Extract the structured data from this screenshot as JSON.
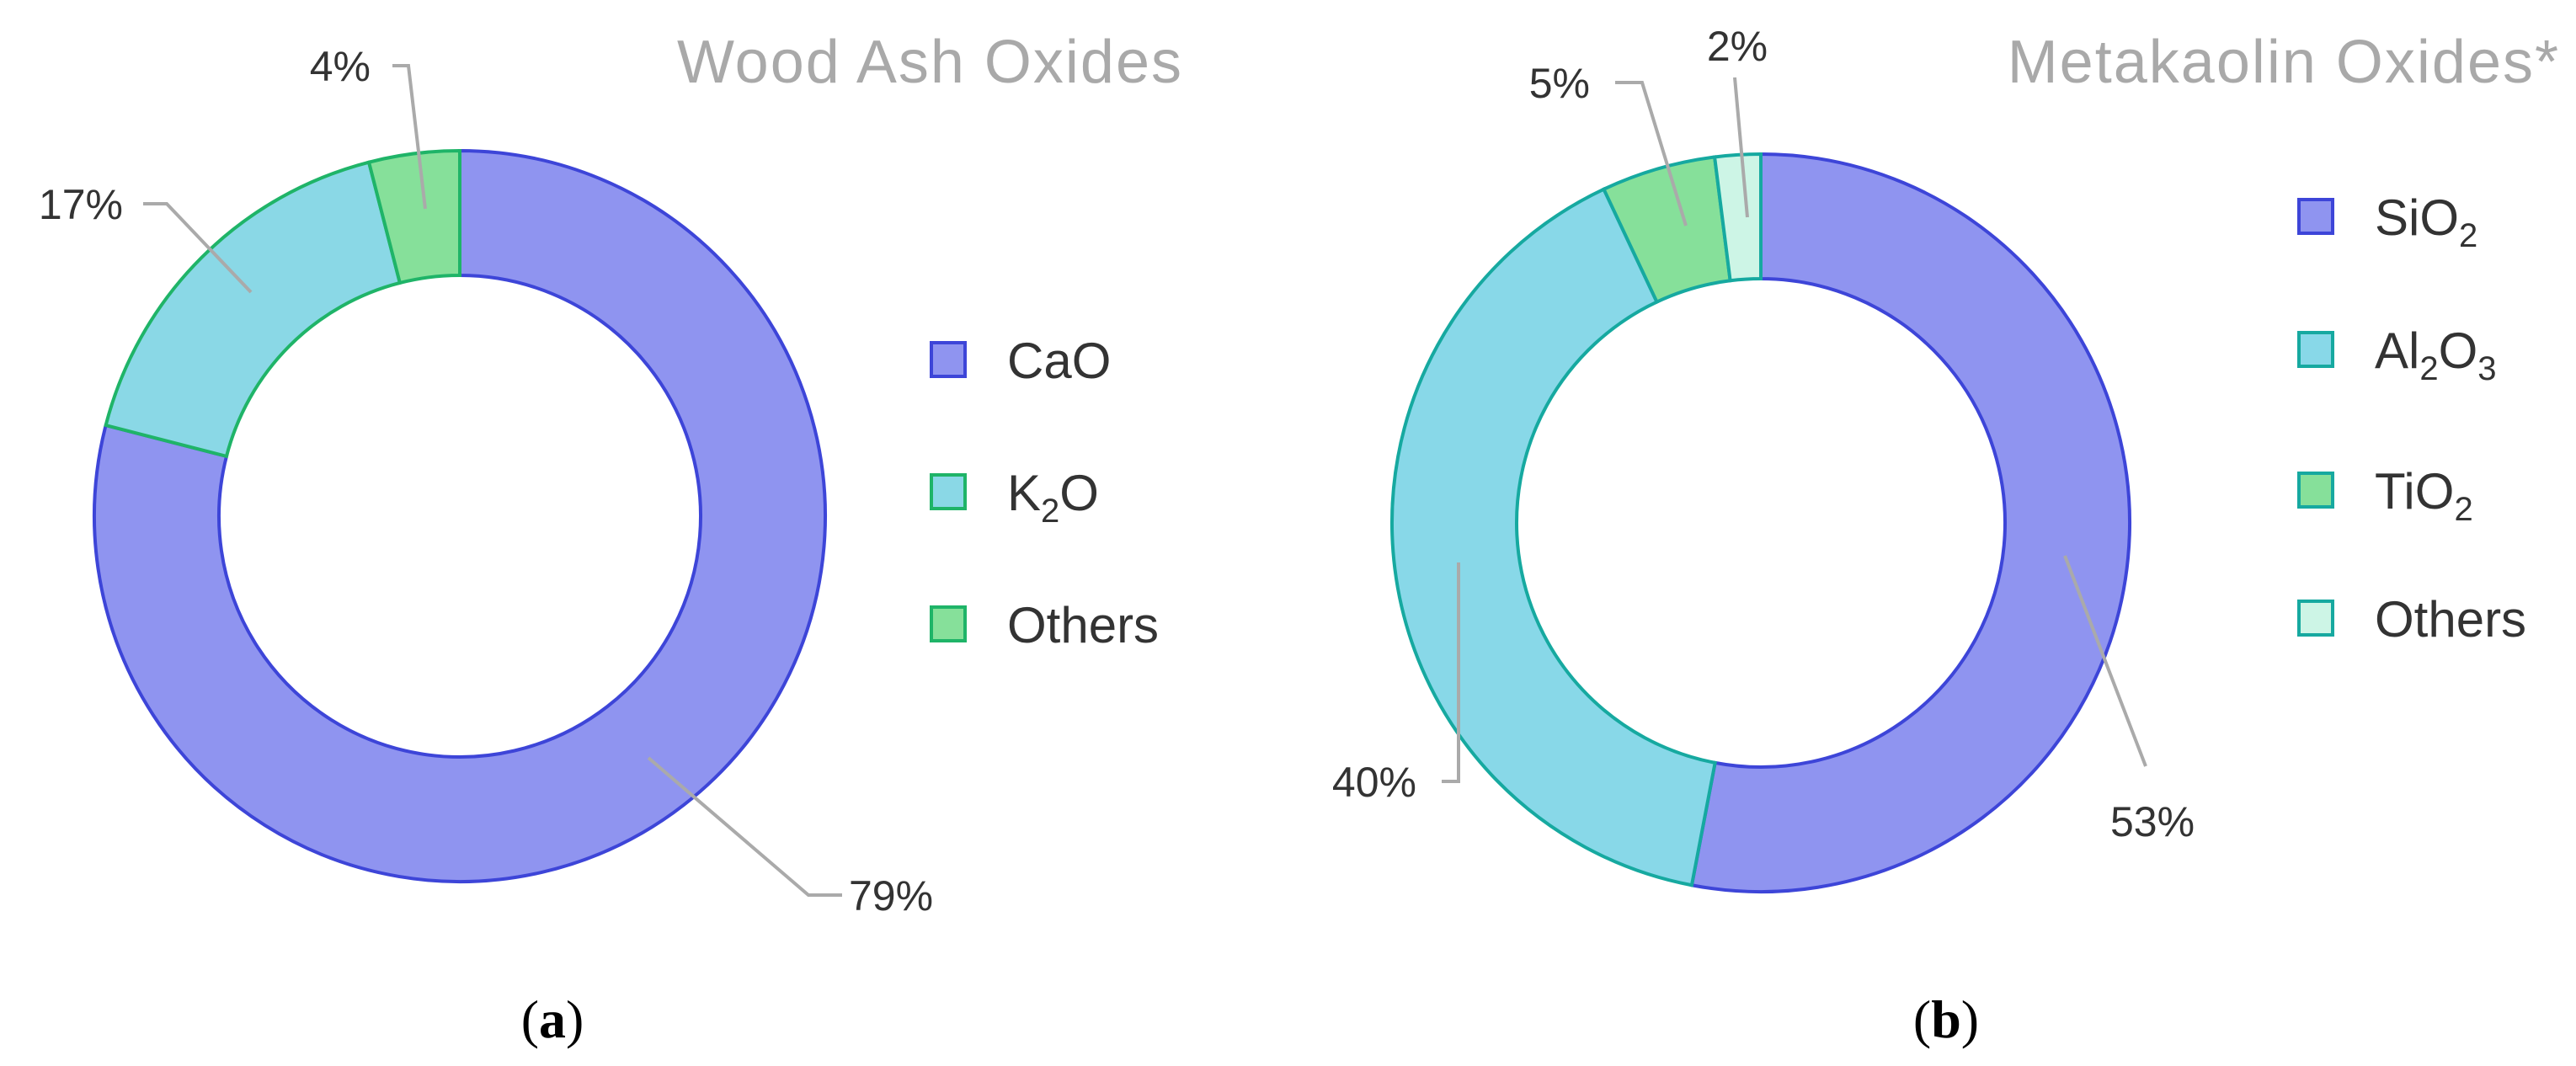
{
  "chart_data": [
    {
      "type": "pie",
      "title": "Wood Ash Oxides",
      "caption_letter": "a",
      "categories": [
        "CaO",
        "K2O",
        "Others"
      ],
      "values": [
        79,
        17,
        4
      ],
      "data_labels": [
        "79%",
        "17%",
        "4%"
      ],
      "legend": [
        {
          "main": "CaO",
          "sub": "",
          "tail": ""
        },
        {
          "main": "K",
          "sub": "2",
          "tail": "O"
        },
        {
          "main": "Others",
          "sub": "",
          "tail": ""
        }
      ],
      "legend_position": "right",
      "colors": {
        "fill": [
          "#8f94f0",
          "#8ad8e6",
          "#86e09a"
        ],
        "stroke": [
          "#3d45d8",
          "#1fb468",
          "#1fb468"
        ]
      }
    },
    {
      "type": "pie",
      "title": "Metakaolin Oxides*",
      "caption_letter": "b",
      "categories": [
        "SiO2",
        "Al2O3",
        "TiO2",
        "Others"
      ],
      "values": [
        53,
        40,
        5,
        2
      ],
      "data_labels": [
        "53%",
        "40%",
        "5%",
        "2%"
      ],
      "legend": [
        {
          "main": "SiO",
          "sub": "2",
          "tail": "",
          "sub2": ""
        },
        {
          "main": "Al",
          "sub": "2",
          "tail": "O",
          "sub2": "3"
        },
        {
          "main": "TiO",
          "sub": "2",
          "tail": "",
          "sub2": ""
        },
        {
          "main": "Others",
          "sub": "",
          "tail": "",
          "sub2": ""
        }
      ],
      "legend_position": "right",
      "colors": {
        "fill": [
          "#8f94f0",
          "#88d8e8",
          "#86e09a",
          "#cdf5e6"
        ],
        "stroke": [
          "#3d45d8",
          "#16a9a0",
          "#16a9a0",
          "#16a9a0"
        ]
      }
    }
  ]
}
